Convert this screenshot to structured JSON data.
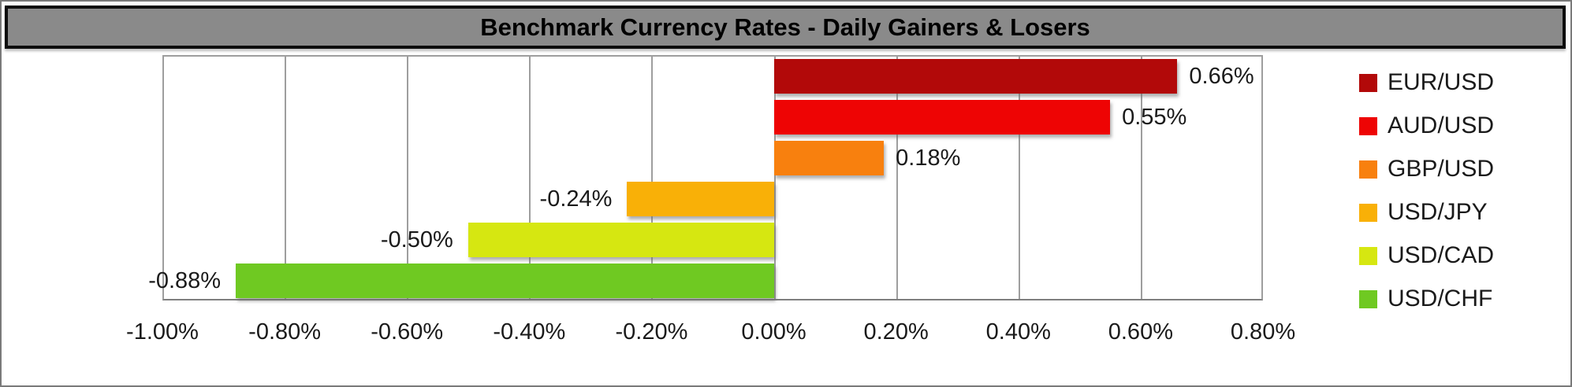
{
  "title": "Benchmark Currency Rates - Daily Gainers & Losers",
  "chart_data": {
    "type": "bar",
    "orientation": "horizontal",
    "title": "Benchmark Currency Rates - Daily Gainers & Losers",
    "series": [
      {
        "name": "EUR/USD",
        "value": 0.66,
        "label": "0.66%",
        "color": "#B20909"
      },
      {
        "name": "AUD/USD",
        "value": 0.55,
        "label": "0.55%",
        "color": "#EE0404"
      },
      {
        "name": "GBP/USD",
        "value": 0.18,
        "label": "0.18%",
        "color": "#F8800E"
      },
      {
        "name": "USD/JPY",
        "value": -0.24,
        "label": "-0.24%",
        "color": "#F9B007"
      },
      {
        "name": "USD/CAD",
        "value": -0.5,
        "label": "-0.50%",
        "color": "#D6E711"
      },
      {
        "name": "USD/CHF",
        "value": -0.88,
        "label": "-0.88%",
        "color": "#6FC922"
      }
    ],
    "xlim": [
      -1.0,
      0.8
    ],
    "x_ticks": [
      {
        "value": -1.0,
        "label": "-1.00%"
      },
      {
        "value": -0.8,
        "label": "-0.80%"
      },
      {
        "value": -0.6,
        "label": "-0.60%"
      },
      {
        "value": -0.4,
        "label": "-0.40%"
      },
      {
        "value": -0.2,
        "label": "-0.20%"
      },
      {
        "value": 0.0,
        "label": "0.00%"
      },
      {
        "value": 0.2,
        "label": "0.20%"
      },
      {
        "value": 0.4,
        "label": "0.40%"
      },
      {
        "value": 0.6,
        "label": "0.60%"
      },
      {
        "value": 0.8,
        "label": "0.80%"
      }
    ],
    "grid": true,
    "legend_position": "right",
    "value_labels": "outside-end",
    "colors": {
      "banner_background": "#8A8A8A",
      "banner_border": "#0D0D0D",
      "gridline": "#9E9E9E",
      "axis_line": "#7F7F7F",
      "text": "#1A1A1A"
    }
  }
}
